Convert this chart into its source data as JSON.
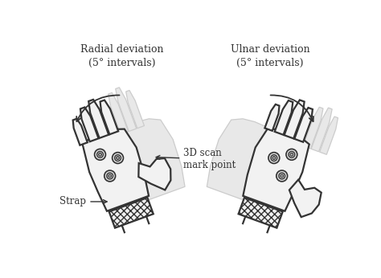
{
  "bg_color": "#ffffff",
  "line_color": "#333333",
  "ghost_color": "#cccccc",
  "ghost_face": "#e8e8e8",
  "hand_face": "#f2f2f2",
  "mark_outer_face": "#d8d8d8",
  "mark_inner_face": "#aaaaaa",
  "title_left": "Radial deviation\n(5° intervals)",
  "title_right": "Ulnar deviation\n(5° intervals)",
  "label_strap": "Strap",
  "label_scan": "3D scan\nmark point",
  "figsize": [
    4.74,
    3.46
  ],
  "dpi": 100
}
